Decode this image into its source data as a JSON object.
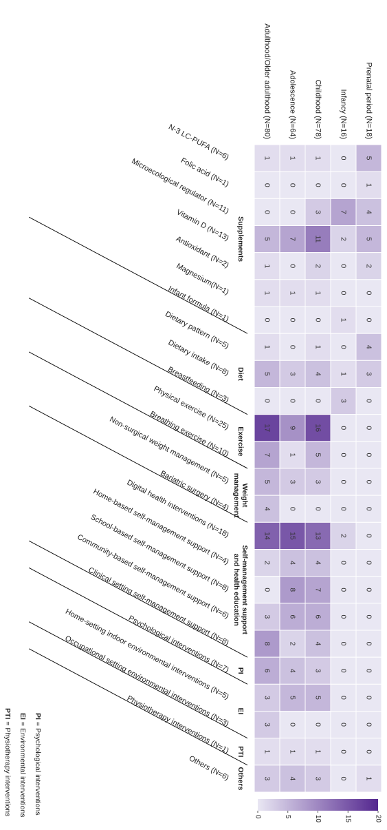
{
  "chart_data": {
    "type": "heatmap",
    "rows": [
      "Prenatal period (N=18)",
      "Infancy (N=16)",
      "Childhood (N=78)",
      "Adolescence (N=64)",
      "Adulthood/Older adulthood (N=80)"
    ],
    "columns": [
      "N-3 LC-PUFA (N=6)",
      "Folic acid (N=1)",
      "Microecological regulator (N=11)",
      "Vitamin D (N=13)",
      "Antioxidant (N=2)",
      "Magnesium(N=1)",
      "Infant formula (N=1)",
      "Dietary pattern (N=5)",
      "Dietary intake (N=8)",
      "Breastfeeding (N=3)",
      "Physical exercise (N=25)",
      "Breathing exercise (N=10)",
      "Non-surgical weight management (N=5)",
      "Bariatric surgery (N=4)",
      "Digital health interventions (N=18)",
      "Home-based self-management support (N=4)",
      "School-based self-management support (N=8)",
      "Community-based self-management support (N=6)",
      "Clinical setting self-management support (N=8)",
      "Psychological interventions (N=7)",
      "Home-setting indoor environmental interventions (N=5)",
      "Occupational setting environmental interventions (N=3)",
      "Physiotherapy interventions (N=1)",
      "Others (N=6)"
    ],
    "values": [
      [
        5,
        1,
        4,
        5,
        2,
        0,
        0,
        4,
        3,
        0,
        0,
        0,
        0,
        0,
        0,
        0,
        0,
        0,
        0,
        0,
        0,
        0,
        0,
        1
      ],
      [
        0,
        0,
        7,
        2,
        0,
        0,
        1,
        0,
        1,
        3,
        0,
        0,
        0,
        0,
        2,
        0,
        0,
        0,
        0,
        0,
        0,
        0,
        0,
        0
      ],
      [
        1,
        0,
        3,
        11,
        2,
        1,
        0,
        1,
        4,
        0,
        16,
        5,
        3,
        0,
        13,
        4,
        7,
        6,
        4,
        3,
        5,
        0,
        1,
        3
      ],
      [
        1,
        0,
        0,
        7,
        0,
        1,
        0,
        0,
        3,
        0,
        9,
        1,
        3,
        0,
        15,
        4,
        8,
        6,
        2,
        4,
        5,
        0,
        1,
        4
      ],
      [
        1,
        0,
        0,
        5,
        1,
        1,
        0,
        1,
        5,
        0,
        17,
        7,
        5,
        4,
        14,
        2,
        0,
        3,
        8,
        6,
        3,
        3,
        1,
        3
      ]
    ],
    "groups": [
      {
        "label": [
          "Supplements"
        ],
        "start": 0,
        "end": 6
      },
      {
        "label": [
          "Diet"
        ],
        "start": 7,
        "end": 9
      },
      {
        "label": [
          "Exercise"
        ],
        "start": 10,
        "end": 11
      },
      {
        "label": [
          "Weight",
          "management"
        ],
        "start": 12,
        "end": 13
      },
      {
        "label": [
          "Self-management support",
          "and health education"
        ],
        "start": 14,
        "end": 18
      },
      {
        "label": [
          "PI"
        ],
        "start": 19,
        "end": 19
      },
      {
        "label": [
          "EI"
        ],
        "start": 20,
        "end": 21
      },
      {
        "label": [
          "PTI"
        ],
        "start": 22,
        "end": 22
      },
      {
        "label": [
          "Others"
        ],
        "start": 23,
        "end": 23
      }
    ],
    "colorbar": {
      "lim": [
        0,
        20
      ],
      "ticks": [
        0,
        5,
        10,
        15,
        20
      ],
      "colors": [
        "#e9e7f3",
        "#54278f"
      ]
    },
    "legend": [
      {
        "abbr": "PI",
        "definition": "= Psychological interventions"
      },
      {
        "abbr": "EI",
        "definition": "= Environmental interventions"
      },
      {
        "abbr": "PTI",
        "definition": "= Physiotherapy interventions"
      }
    ]
  }
}
